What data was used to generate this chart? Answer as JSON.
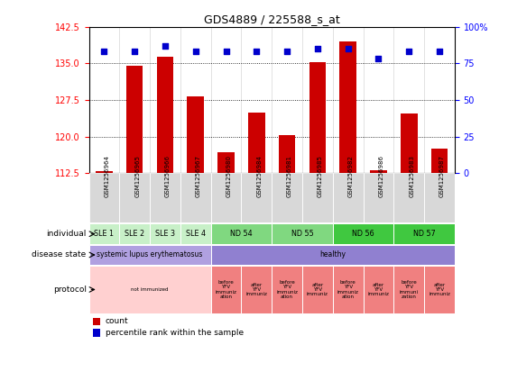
{
  "title": "GDS4889 / 225588_s_at",
  "samples": [
    "GSM1256964",
    "GSM1256965",
    "GSM1256966",
    "GSM1256967",
    "GSM1256980",
    "GSM1256984",
    "GSM1256981",
    "GSM1256985",
    "GSM1256982",
    "GSM1256986",
    "GSM1256983",
    "GSM1256987"
  ],
  "counts": [
    113.0,
    134.5,
    136.3,
    128.2,
    116.8,
    125.0,
    120.3,
    135.2,
    139.5,
    113.2,
    124.8,
    117.5
  ],
  "percentiles": [
    83,
    83,
    87,
    83,
    83,
    83,
    83,
    85,
    85,
    78,
    83,
    83
  ],
  "ylim_left": [
    112.5,
    142.5
  ],
  "ylim_right": [
    0,
    100
  ],
  "yticks_left": [
    112.5,
    120.0,
    127.5,
    135.0,
    142.5
  ],
  "yticks_right": [
    0,
    25,
    50,
    75,
    100
  ],
  "bar_color": "#cc0000",
  "dot_color": "#0000cc",
  "ind_groups": [
    {
      "label": "SLE 1",
      "start": 0,
      "end": 1,
      "color": "#c8f0c8"
    },
    {
      "label": "SLE 2",
      "start": 1,
      "end": 2,
      "color": "#c8f0c8"
    },
    {
      "label": "SLE 3",
      "start": 2,
      "end": 3,
      "color": "#c8f0c8"
    },
    {
      "label": "SLE 4",
      "start": 3,
      "end": 4,
      "color": "#c8f0c8"
    },
    {
      "label": "ND 54",
      "start": 4,
      "end": 6,
      "color": "#80d880"
    },
    {
      "label": "ND 55",
      "start": 6,
      "end": 8,
      "color": "#80d880"
    },
    {
      "label": "ND 56",
      "start": 8,
      "end": 10,
      "color": "#40c840"
    },
    {
      "label": "ND 57",
      "start": 10,
      "end": 12,
      "color": "#40c840"
    }
  ],
  "dis_groups": [
    {
      "label": "systemic lupus erythematosus",
      "start": 0,
      "end": 4,
      "color": "#b0a0e0"
    },
    {
      "label": "healthy",
      "start": 4,
      "end": 12,
      "color": "#9080d0"
    }
  ],
  "prot_groups": [
    {
      "label": "not immunized",
      "start": 0,
      "end": 4,
      "color": "#ffd0d0"
    },
    {
      "label": "before\nYFV\nimmuniz\nation",
      "start": 4,
      "end": 5,
      "color": "#f08080"
    },
    {
      "label": "after\nYFV\nimmuniz",
      "start": 5,
      "end": 6,
      "color": "#f08080"
    },
    {
      "label": "before\nYFV\nimmuniz\nation",
      "start": 6,
      "end": 7,
      "color": "#f08080"
    },
    {
      "label": "after\nYFV\nimmuniz",
      "start": 7,
      "end": 8,
      "color": "#f08080"
    },
    {
      "label": "before\nYFV\nimmuniz\nation",
      "start": 8,
      "end": 9,
      "color": "#f08080"
    },
    {
      "label": "after\nYFV\nimmuniz",
      "start": 9,
      "end": 10,
      "color": "#f08080"
    },
    {
      "label": "before\nYFV\nimmuni\nzation",
      "start": 10,
      "end": 11,
      "color": "#f08080"
    },
    {
      "label": "after\nYFV\nimmuniz",
      "start": 11,
      "end": 12,
      "color": "#f08080"
    }
  ]
}
